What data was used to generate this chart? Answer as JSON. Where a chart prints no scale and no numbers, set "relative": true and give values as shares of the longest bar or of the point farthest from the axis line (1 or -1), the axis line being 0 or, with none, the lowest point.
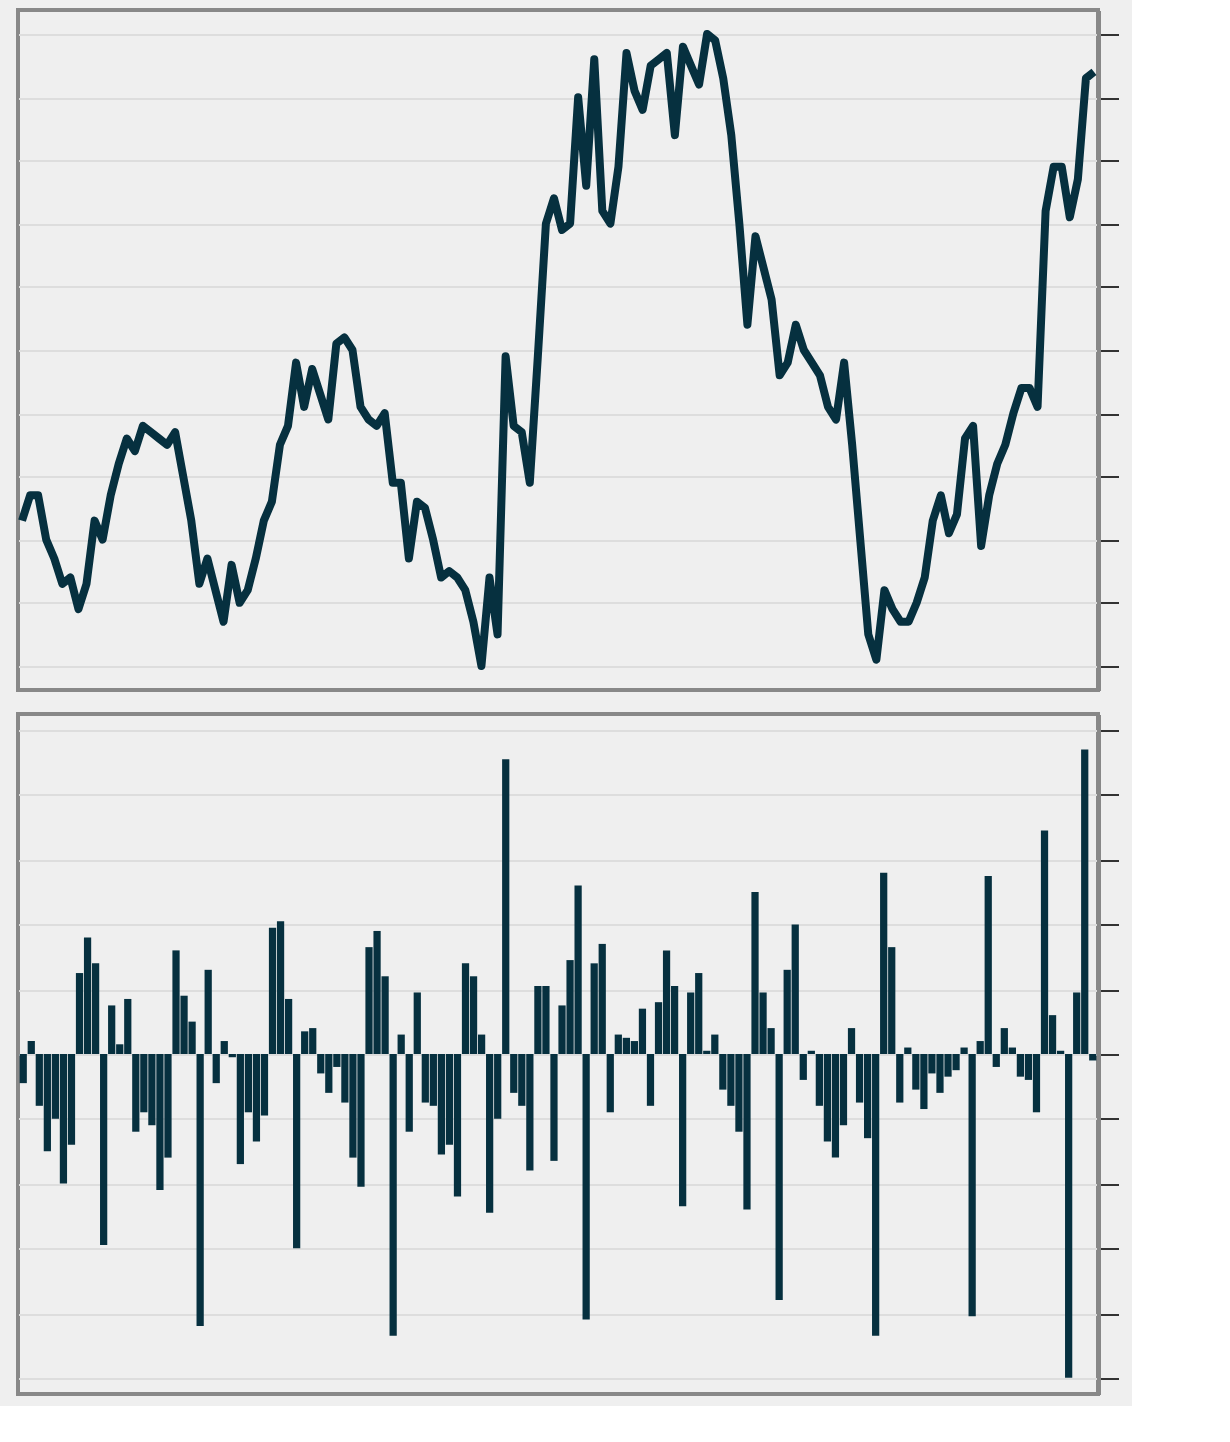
{
  "chart_data": [
    {
      "type": "line",
      "relative": true,
      "tick_labels": false,
      "grid": "y",
      "line_style": "solid",
      "marker": "none",
      "categories": [
        null,
        null,
        null,
        null,
        null,
        null,
        null,
        null,
        null,
        null,
        null,
        null,
        null,
        null,
        null,
        null,
        null,
        null,
        null,
        null,
        null,
        null,
        null,
        null,
        null,
        null,
        null,
        null,
        null,
        null,
        null,
        null,
        null,
        null,
        null,
        null,
        null,
        null,
        null,
        null,
        null,
        null,
        null,
        null,
        null,
        null,
        null,
        null,
        null,
        null,
        null,
        null,
        null,
        null,
        null,
        null,
        null,
        null,
        null,
        null,
        null,
        null,
        null,
        null,
        null,
        null,
        null,
        null,
        null,
        null,
        null,
        null,
        null,
        null,
        null,
        null,
        null,
        null,
        null,
        null,
        null,
        null,
        null,
        null,
        null,
        null,
        null,
        null,
        null,
        null,
        null,
        null,
        null,
        null,
        null,
        null,
        null,
        null,
        null,
        null,
        null,
        null,
        null,
        null,
        null,
        null,
        null,
        null,
        null,
        null,
        null,
        null,
        null,
        null,
        null,
        null,
        null,
        null,
        null,
        null,
        null,
        null,
        null,
        null,
        null,
        null,
        null,
        null,
        null,
        null,
        null,
        null,
        null,
        null
      ],
      "series": [
        {
          "color": "#06303f",
          "values": [
            0.23,
            0.27,
            0.27,
            0.2,
            0.17,
            0.13,
            0.14,
            0.09,
            0.13,
            0.23,
            0.2,
            0.27,
            0.32,
            0.36,
            0.34,
            0.38,
            0.37,
            0.36,
            0.35,
            0.37,
            0.3,
            0.23,
            0.13,
            0.17,
            0.12,
            0.07,
            0.16,
            0.1,
            0.12,
            0.17,
            0.23,
            0.26,
            0.35,
            0.38,
            0.48,
            0.41,
            0.47,
            0.43,
            0.39,
            0.51,
            0.52,
            0.5,
            0.41,
            0.39,
            0.38,
            0.4,
            0.29,
            0.29,
            0.17,
            0.26,
            0.25,
            0.2,
            0.14,
            0.15,
            0.14,
            0.12,
            0.07,
            0,
            0.14,
            0.05,
            0.49,
            0.38,
            0.37,
            0.29,
            0.49,
            0.7,
            0.74,
            0.69,
            0.7,
            0.9,
            0.76,
            0.96,
            0.72,
            0.7,
            0.79,
            0.97,
            0.91,
            0.88,
            0.95,
            0.96,
            0.97,
            0.84,
            0.98,
            0.95,
            0.92,
            1,
            0.99,
            0.93,
            0.84,
            0.7,
            0.54,
            0.68,
            0.63,
            0.58,
            0.46,
            0.48,
            0.54,
            0.5,
            0.48,
            0.46,
            0.41,
            0.39,
            0.48,
            0.35,
            0.2,
            0.05,
            0.01,
            0.12,
            0.09,
            0.07,
            0.07,
            0.1,
            0.14,
            0.23,
            0.27,
            0.21,
            0.24,
            0.36,
            0.38,
            0.19,
            0.27,
            0.32,
            0.35,
            0.4,
            0.44,
            0.44,
            0.41,
            0.72,
            0.79,
            0.79,
            0.71,
            0.77,
            0.93,
            0.94
          ]
        }
      ]
    },
    {
      "type": "bar",
      "relative": true,
      "tick_labels": false,
      "grid": "y",
      "categories": [
        null,
        null,
        null,
        null,
        null,
        null,
        null,
        null,
        null,
        null,
        null,
        null,
        null,
        null,
        null,
        null,
        null,
        null,
        null,
        null,
        null,
        null,
        null,
        null,
        null,
        null,
        null,
        null,
        null,
        null,
        null,
        null,
        null,
        null,
        null,
        null,
        null,
        null,
        null,
        null,
        null,
        null,
        null,
        null,
        null,
        null,
        null,
        null,
        null,
        null,
        null,
        null,
        null,
        null,
        null,
        null,
        null,
        null,
        null,
        null,
        null,
        null,
        null,
        null,
        null,
        null,
        null,
        null,
        null,
        null,
        null,
        null,
        null,
        null,
        null,
        null,
        null,
        null,
        null,
        null,
        null,
        null,
        null,
        null,
        null,
        null,
        null,
        null,
        null,
        null,
        null,
        null,
        null,
        null,
        null,
        null,
        null,
        null,
        null,
        null,
        null,
        null,
        null,
        null,
        null,
        null,
        null,
        null,
        null,
        null,
        null,
        null,
        null,
        null,
        null,
        null,
        null,
        null,
        null,
        null,
        null,
        null,
        null,
        null,
        null,
        null,
        null,
        null,
        null,
        null,
        null,
        null,
        null,
        null
      ],
      "series": [
        {
          "color": "#06303f",
          "values": [
            -0.09,
            0.04,
            -0.16,
            -0.3,
            -0.2,
            -0.4,
            -0.28,
            0.25,
            0.36,
            0.28,
            -0.59,
            0.15,
            0.03,
            0.17,
            -0.24,
            -0.18,
            -0.22,
            -0.42,
            -0.32,
            0.32,
            0.18,
            0.1,
            -0.84,
            0.26,
            -0.09,
            0.04,
            -0.01,
            -0.34,
            -0.18,
            -0.27,
            -0.19,
            0.39,
            0.41,
            0.17,
            -0.6,
            0.07,
            0.08,
            -0.06,
            -0.12,
            -0.04,
            -0.15,
            -0.32,
            -0.41,
            0.33,
            0.38,
            0.24,
            -0.87,
            0.06,
            -0.24,
            0.19,
            -0.15,
            -0.16,
            -0.31,
            -0.28,
            -0.44,
            0.28,
            0.24,
            0.06,
            -0.49,
            -0.2,
            0.91,
            -0.12,
            -0.16,
            -0.36,
            0.21,
            0.21,
            -0.33,
            0.15,
            0.29,
            0.52,
            -0.82,
            0.28,
            0.34,
            -0.18,
            0.06,
            0.05,
            0.04,
            0.14,
            -0.16,
            0.16,
            0.32,
            0.21,
            -0.47,
            0.19,
            0.25,
            0.01,
            0.06,
            -0.11,
            -0.16,
            -0.24,
            -0.48,
            0.5,
            0.19,
            0.08,
            -0.76,
            0.26,
            0.4,
            -0.08,
            0.01,
            -0.16,
            -0.27,
            -0.32,
            -0.22,
            0.08,
            -0.15,
            -0.26,
            -0.87,
            0.56,
            0.33,
            -0.15,
            0.02,
            -0.11,
            -0.17,
            -0.06,
            -0.12,
            -0.07,
            -0.05,
            0.02,
            -0.81,
            0.04,
            0.55,
            -0.04,
            0.08,
            0.02,
            -0.07,
            -0.08,
            -0.18,
            0.69,
            0.12,
            0.01,
            -1,
            0.19,
            0.94,
            -0.02
          ]
        }
      ]
    }
  ]
}
